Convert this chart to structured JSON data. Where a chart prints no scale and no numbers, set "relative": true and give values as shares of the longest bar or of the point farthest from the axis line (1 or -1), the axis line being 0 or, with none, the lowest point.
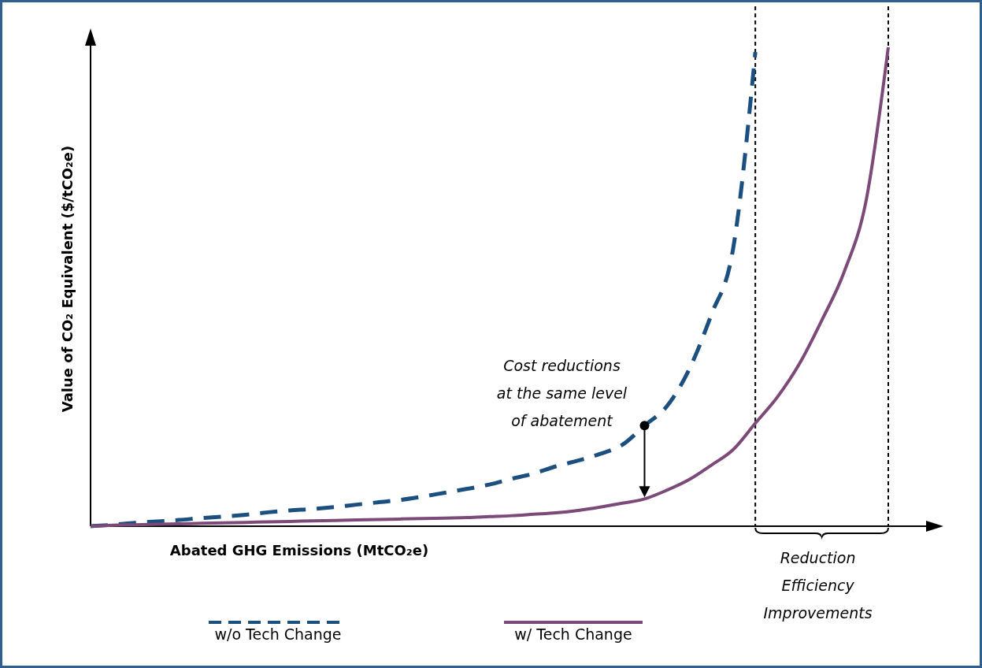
{
  "chart_data": {
    "type": "line",
    "relative": true,
    "xlabel": "Abated GHG Emissions (MtCO₂e)",
    "ylabel": "Value of CO₂ Equivalent ($/tCO₂e)",
    "categories": [
      null,
      null,
      null,
      null,
      null,
      null,
      null,
      null,
      null,
      null,
      null,
      null,
      null,
      null,
      null,
      null,
      null,
      null,
      null,
      null,
      null,
      null,
      null,
      null,
      null,
      null,
      null,
      null,
      null,
      null,
      null,
      null,
      null,
      null,
      null,
      null,
      null
    ],
    "series": [
      {
        "name": "w/o Tech Change",
        "color": "#1b4f80",
        "line_style": "dashed",
        "values": [
          0,
          0.003,
          0.007,
          0.01,
          0.013,
          0.017,
          0.02,
          0.024,
          0.029,
          0.033,
          0.036,
          0.04,
          0.045,
          0.05,
          0.055,
          0.062,
          0.07,
          0.078,
          0.087,
          0.099,
          0.11,
          0.125,
          0.137,
          0.151,
          0.17,
          0.21,
          0.25,
          0.326,
          0.44,
          0.58,
          0.99,
          null,
          null,
          null,
          null,
          null,
          null
        ]
      },
      {
        "name": "w/ Tech Change",
        "color": "#7b4a78",
        "line_style": "solid",
        "values": [
          0,
          0.002,
          0.003,
          0.004,
          0.005,
          0.006,
          0.007,
          0.008,
          0.009,
          0.01,
          0.011,
          0.012,
          0.013,
          0.014,
          0.015,
          0.016,
          0.017,
          0.018,
          0.02,
          0.022,
          0.025,
          0.028,
          0.033,
          0.04,
          0.048,
          0.057,
          0.075,
          0.097,
          0.127,
          0.16,
          0.215,
          0.27,
          0.34,
          0.43,
          0.53,
          0.68,
          1
        ]
      }
    ],
    "annotations": [
      "Cost reductions at the same level of abatement",
      "Reduction Efficiency Improvements"
    ],
    "legend": "bottom",
    "marker": "none"
  }
}
